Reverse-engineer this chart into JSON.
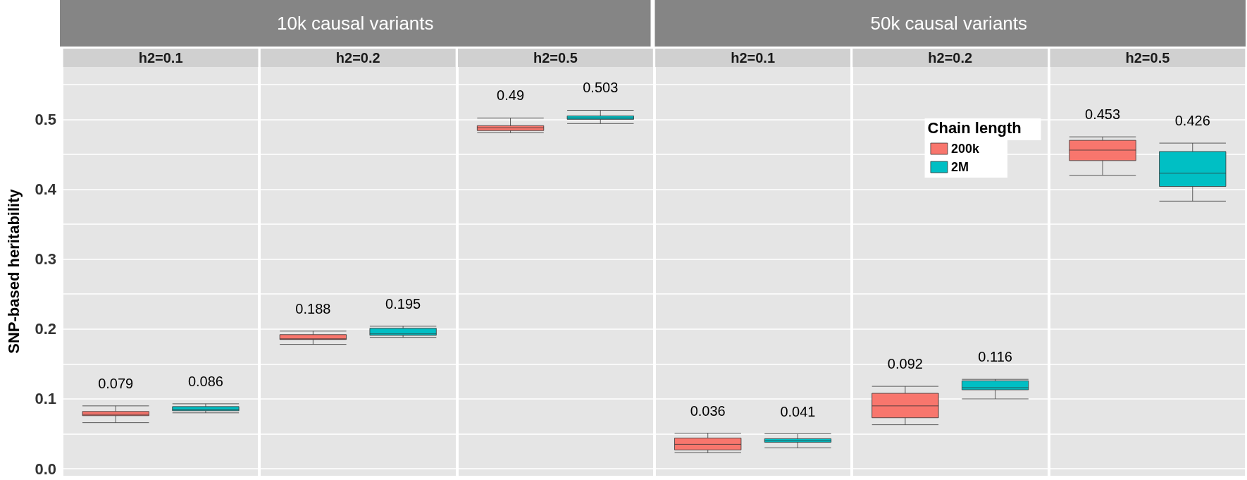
{
  "chart_data": {
    "type": "box",
    "ylabel": "SNP-based heritability",
    "annotations": [
      "10k causal variants",
      "50k causal variants"
    ],
    "categories": [
      "h2=0.1",
      "h2=0.2",
      "h2=0.5",
      "h2=0.1",
      "h2=0.2",
      "h2=0.5"
    ],
    "legend_title": "Chain length",
    "legend": "top right",
    "series": [
      {
        "name": "200k",
        "color": "#f8766d",
        "value_labels": [
          "0.079",
          "0.188",
          "0.49",
          "0.036",
          "0.092",
          "0.453"
        ],
        "boxes": [
          {
            "low": 0.066,
            "q1": 0.076,
            "median": 0.078,
            "q3": 0.082,
            "high": 0.09
          },
          {
            "low": 0.178,
            "q1": 0.185,
            "median": 0.186,
            "q3": 0.192,
            "high": 0.197
          },
          {
            "low": 0.481,
            "q1": 0.484,
            "median": 0.488,
            "q3": 0.491,
            "high": 0.502
          },
          {
            "low": 0.023,
            "q1": 0.027,
            "median": 0.035,
            "q3": 0.044,
            "high": 0.051
          },
          {
            "low": 0.063,
            "q1": 0.073,
            "median": 0.09,
            "q3": 0.108,
            "high": 0.118
          },
          {
            "low": 0.42,
            "q1": 0.441,
            "median": 0.456,
            "q3": 0.47,
            "high": 0.475
          }
        ]
      },
      {
        "name": "2M",
        "color": "#00bfc4",
        "value_labels": [
          "0.086",
          "0.195",
          "0.503",
          "0.041",
          "0.116",
          "0.426"
        ],
        "boxes": [
          {
            "low": 0.08,
            "q1": 0.083,
            "median": 0.085,
            "q3": 0.089,
            "high": 0.093
          },
          {
            "low": 0.188,
            "q1": 0.191,
            "median": 0.193,
            "q3": 0.201,
            "high": 0.204
          },
          {
            "low": 0.494,
            "q1": 0.5,
            "median": 0.502,
            "q3": 0.505,
            "high": 0.513
          },
          {
            "low": 0.03,
            "q1": 0.038,
            "median": 0.04,
            "q3": 0.043,
            "high": 0.05
          },
          {
            "low": 0.1,
            "q1": 0.113,
            "median": 0.116,
            "q3": 0.126,
            "high": 0.128
          },
          {
            "low": 0.383,
            "q1": 0.404,
            "median": 0.423,
            "q3": 0.454,
            "high": 0.466
          }
        ]
      }
    ],
    "ylim": [
      -0.01,
      0.575
    ],
    "yticks": [
      {
        "value": 0,
        "label": "0.0"
      },
      {
        "value": 0.05,
        "label": null
      },
      0.1,
      {
        "value": 0.15,
        "label": null
      },
      0.2,
      {
        "value": 0.25,
        "label": null
      },
      0.3,
      {
        "value": 0.35,
        "label": null
      },
      0.4,
      {
        "value": 0.45,
        "label": null
      },
      0.5,
      {
        "value": 0.55,
        "label": null
      }
    ],
    "grid": true
  }
}
